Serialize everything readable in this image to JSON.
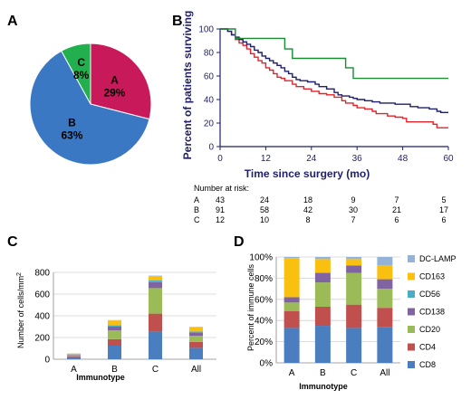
{
  "panel_labels": {
    "a": "A",
    "b": "B",
    "c": "C",
    "d": "D"
  },
  "chart_data": [
    {
      "panel": "A",
      "type": "pie",
      "slices": [
        {
          "label": "A",
          "value": 29,
          "pct": "29%",
          "color": "#c8195a"
        },
        {
          "label": "B",
          "value": 63,
          "pct": "63%",
          "color": "#3a78c3"
        },
        {
          "label": "C",
          "value": 8,
          "pct": "8%",
          "color": "#22b04e"
        }
      ]
    },
    {
      "panel": "B",
      "type": "line",
      "xlabel": "Time since surgery (mo)",
      "ylabel": "Percent of patients surviving",
      "xlim": [
        0,
        60
      ],
      "ylim": [
        0,
        100
      ],
      "xticks": [
        "0",
        "12",
        "24",
        "36",
        "48",
        "60"
      ],
      "yticks": [
        "0",
        "20",
        "40",
        "60",
        "80",
        "100"
      ],
      "series": [
        {
          "name": "A",
          "color": "#e0242b",
          "step": [
            [
              0,
              100
            ],
            [
              2,
              98
            ],
            [
              3,
              95
            ],
            [
              4,
              91
            ],
            [
              5,
              88
            ],
            [
              6,
              86
            ],
            [
              7,
              83
            ],
            [
              8,
              79
            ],
            [
              9,
              76
            ],
            [
              10,
              73
            ],
            [
              11,
              71
            ],
            [
              12,
              67
            ],
            [
              13,
              65
            ],
            [
              14,
              62
            ],
            [
              15,
              59
            ],
            [
              16,
              58
            ],
            [
              17,
              56
            ],
            [
              18,
              56
            ],
            [
              19,
              53
            ],
            [
              20,
              51
            ],
            [
              22,
              49
            ],
            [
              24,
              47
            ],
            [
              26,
              45
            ],
            [
              28,
              44
            ],
            [
              30,
              42
            ],
            [
              32,
              39
            ],
            [
              33,
              37
            ],
            [
              35,
              35
            ],
            [
              36,
              33
            ],
            [
              38,
              32
            ],
            [
              40,
              30
            ],
            [
              41,
              28
            ],
            [
              43,
              28
            ],
            [
              44,
              26
            ],
            [
              46,
              25
            ],
            [
              48,
              24
            ],
            [
              49,
              21
            ],
            [
              52,
              21
            ],
            [
              56,
              19
            ],
            [
              57,
              16
            ],
            [
              60,
              16
            ]
          ]
        },
        {
          "name": "B",
          "color": "#1f1f6b",
          "step": [
            [
              0,
              100
            ],
            [
              2,
              98
            ],
            [
              3,
              95
            ],
            [
              4,
              93
            ],
            [
              5,
              91
            ],
            [
              6,
              89
            ],
            [
              7,
              87
            ],
            [
              8,
              85
            ],
            [
              9,
              82
            ],
            [
              10,
              80
            ],
            [
              11,
              77
            ],
            [
              12,
              75
            ],
            [
              13,
              73
            ],
            [
              14,
              71
            ],
            [
              15,
              69
            ],
            [
              16,
              67
            ],
            [
              17,
              64
            ],
            [
              18,
              62
            ],
            [
              19,
              59
            ],
            [
              20,
              57
            ],
            [
              21,
              56
            ],
            [
              23,
              55
            ],
            [
              25,
              53
            ],
            [
              26,
              51
            ],
            [
              28,
              49
            ],
            [
              30,
              46
            ],
            [
              31,
              44
            ],
            [
              32,
              43
            ],
            [
              34,
              42
            ],
            [
              35,
              41
            ],
            [
              36,
              40
            ],
            [
              38,
              39
            ],
            [
              40,
              38
            ],
            [
              42,
              37
            ],
            [
              43,
              37
            ],
            [
              46,
              36
            ],
            [
              48,
              36
            ],
            [
              50,
              34
            ],
            [
              52,
              33
            ],
            [
              55,
              32
            ],
            [
              57,
              30
            ],
            [
              58,
              29
            ],
            [
              60,
              29
            ]
          ]
        },
        {
          "name": "C",
          "color": "#1a8a33",
          "step": [
            [
              0,
              100
            ],
            [
              4,
              92
            ],
            [
              12,
              92
            ],
            [
              17,
              83
            ],
            [
              18,
              83
            ],
            [
              19,
              75
            ],
            [
              32,
              75
            ],
            [
              33,
              67
            ],
            [
              34,
              67
            ],
            [
              35,
              58
            ],
            [
              60,
              58
            ]
          ]
        }
      ]
    },
    {
      "panel": "B-risk",
      "type": "table",
      "title": "Number at risk:",
      "rows": [
        {
          "group": "A",
          "values": [
            "43",
            "24",
            "18",
            "9",
            "7",
            "5"
          ]
        },
        {
          "group": "B",
          "values": [
            "91",
            "58",
            "42",
            "30",
            "21",
            "17"
          ]
        },
        {
          "group": "C",
          "values": [
            "12",
            "10",
            "8",
            "7",
            "6",
            "6"
          ]
        }
      ]
    },
    {
      "panel": "C",
      "type": "bar",
      "stacked": true,
      "xlabel": "Immunotype",
      "ylabel": "Number of cells/mm",
      "ylabel_sup": "2",
      "categories": [
        "A",
        "B",
        "C",
        "All"
      ],
      "ylim": [
        0,
        800
      ],
      "yticks": [
        "0",
        "200",
        "400",
        "600",
        "800"
      ],
      "series": [
        {
          "name": "CD8",
          "color": "#4a7ebf",
          "values": [
            20,
            125,
            255,
            105
          ]
        },
        {
          "name": "CD4",
          "color": "#c0504d",
          "values": [
            8,
            60,
            165,
            55
          ]
        },
        {
          "name": "CD20",
          "color": "#9bbb59",
          "values": [
            5,
            80,
            235,
            55
          ]
        },
        {
          "name": "CD138",
          "color": "#8064a2",
          "values": [
            5,
            35,
            55,
            30
          ]
        },
        {
          "name": "CD56",
          "color": "#4bacc6",
          "values": [
            2,
            12,
            15,
            10
          ]
        },
        {
          "name": "CD163",
          "color": "#f9c00f",
          "values": [
            12,
            45,
            40,
            40
          ]
        },
        {
          "name": "DC-LAMP",
          "color": "#95b3d7",
          "values": [
            2,
            3,
            5,
            3
          ]
        }
      ]
    },
    {
      "panel": "D",
      "type": "bar",
      "stacked": true,
      "xlabel": "Immunotype",
      "ylabel": "Percent of immune cells",
      "categories": [
        "A",
        "B",
        "C",
        "All"
      ],
      "ylim": [
        0,
        100
      ],
      "yticks": [
        "0%",
        "20%",
        "40%",
        "60%",
        "80%",
        "100%"
      ],
      "series": [
        {
          "name": "CD8",
          "color": "#4a7ebf",
          "values": [
            33,
            35,
            33,
            34
          ]
        },
        {
          "name": "CD4",
          "color": "#c0504d",
          "values": [
            16,
            18,
            22,
            18
          ]
        },
        {
          "name": "CD20",
          "color": "#9bbb59",
          "values": [
            8,
            23,
            30,
            18
          ]
        },
        {
          "name": "CD138",
          "color": "#8064a2",
          "values": [
            5,
            9,
            7,
            9
          ]
        },
        {
          "name": "CD56",
          "color": "#4bacc6",
          "values": [
            0,
            0,
            0,
            0
          ]
        },
        {
          "name": "CD163",
          "color": "#f9c00f",
          "values": [
            37,
            13,
            6,
            13
          ]
        },
        {
          "name": "DC-LAMP",
          "color": "#95b3d7",
          "values": [
            1,
            2,
            2,
            8
          ]
        }
      ],
      "legend": [
        "DC-LAMP",
        "CD163",
        "CD56",
        "CD138",
        "CD20",
        "CD4",
        "CD8"
      ]
    }
  ]
}
